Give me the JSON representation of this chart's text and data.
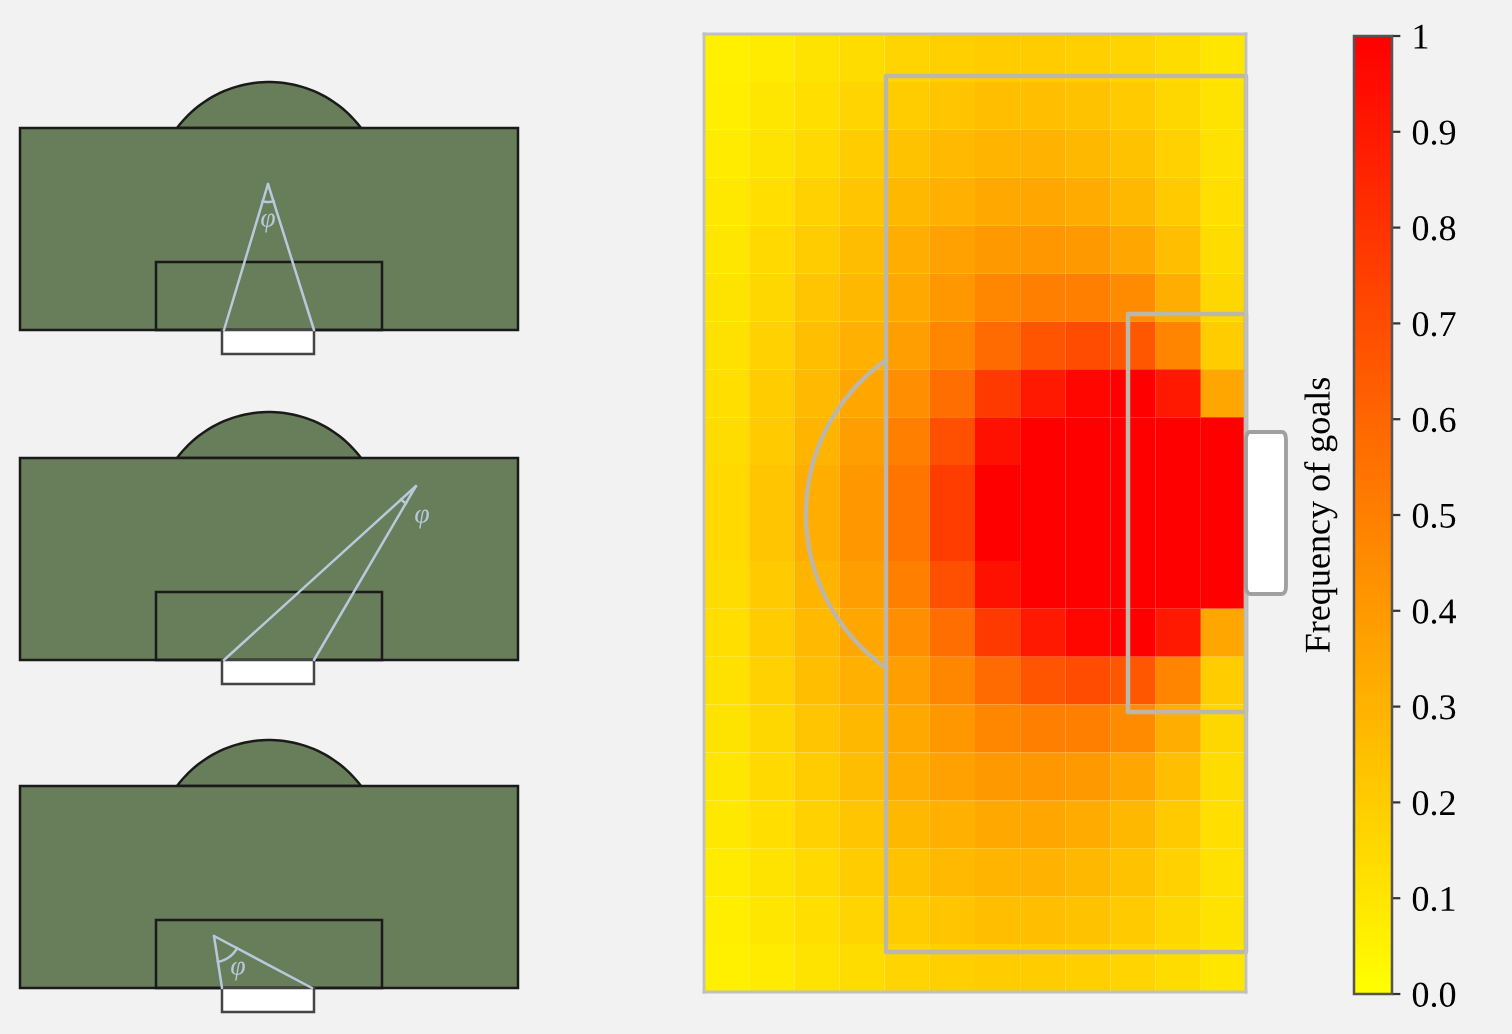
{
  "chart_data": {
    "type": "heatmap",
    "categories": [
      null,
      null,
      null,
      null,
      null,
      null,
      null,
      null,
      null,
      null,
      null,
      null
    ],
    "y_categories": [
      null,
      null,
      null,
      null,
      null,
      null,
      null,
      null,
      null,
      null,
      null,
      null,
      null,
      null,
      null,
      null,
      null,
      null,
      null,
      null
    ],
    "cells": [
      [
        0.06,
        0.08,
        0.11,
        0.14,
        0.17,
        0.19,
        0.2,
        0.2,
        0.19,
        0.17,
        0.14,
        0.1
      ],
      [
        0.07,
        0.1,
        0.13,
        0.17,
        0.2,
        0.23,
        0.25,
        0.25,
        0.24,
        0.21,
        0.16,
        0.11
      ],
      [
        0.08,
        0.11,
        0.15,
        0.2,
        0.24,
        0.27,
        0.29,
        0.3,
        0.28,
        0.24,
        0.18,
        0.12
      ],
      [
        0.09,
        0.13,
        0.18,
        0.23,
        0.28,
        0.31,
        0.34,
        0.35,
        0.33,
        0.28,
        0.21,
        0.13
      ],
      [
        0.1,
        0.15,
        0.2,
        0.26,
        0.32,
        0.37,
        0.4,
        0.41,
        0.4,
        0.35,
        0.25,
        0.14
      ],
      [
        0.11,
        0.16,
        0.23,
        0.28,
        0.34,
        0.41,
        0.47,
        0.5,
        0.5,
        0.45,
        0.32,
        0.16
      ],
      [
        0.12,
        0.18,
        0.25,
        0.31,
        0.38,
        0.47,
        0.58,
        0.67,
        0.7,
        0.66,
        0.48,
        0.2
      ],
      [
        0.13,
        0.2,
        0.27,
        0.35,
        0.44,
        0.57,
        0.77,
        0.9,
        0.97,
        1,
        0.9,
        0.35
      ],
      [
        0.14,
        0.21,
        0.29,
        0.38,
        0.5,
        0.69,
        0.93,
        1,
        1,
        1,
        1,
        1
      ],
      [
        0.15,
        0.23,
        0.32,
        0.41,
        0.54,
        0.76,
        1,
        1,
        1,
        1,
        1,
        1
      ],
      [
        0.15,
        0.23,
        0.32,
        0.41,
        0.54,
        0.76,
        1,
        1,
        1,
        1,
        1,
        1
      ],
      [
        0.14,
        0.21,
        0.29,
        0.38,
        0.5,
        0.69,
        0.93,
        1,
        1,
        1,
        1,
        1
      ],
      [
        0.13,
        0.2,
        0.27,
        0.35,
        0.44,
        0.57,
        0.77,
        0.9,
        0.97,
        1,
        0.9,
        0.35
      ],
      [
        0.12,
        0.18,
        0.25,
        0.31,
        0.38,
        0.47,
        0.58,
        0.67,
        0.7,
        0.66,
        0.48,
        0.2
      ],
      [
        0.11,
        0.16,
        0.23,
        0.28,
        0.34,
        0.41,
        0.47,
        0.5,
        0.5,
        0.45,
        0.32,
        0.16
      ],
      [
        0.1,
        0.15,
        0.2,
        0.26,
        0.32,
        0.37,
        0.4,
        0.41,
        0.4,
        0.35,
        0.25,
        0.14
      ],
      [
        0.09,
        0.13,
        0.18,
        0.23,
        0.28,
        0.31,
        0.34,
        0.35,
        0.33,
        0.28,
        0.21,
        0.13
      ],
      [
        0.08,
        0.11,
        0.15,
        0.2,
        0.24,
        0.27,
        0.29,
        0.3,
        0.28,
        0.24,
        0.18,
        0.12
      ],
      [
        0.07,
        0.1,
        0.13,
        0.17,
        0.2,
        0.23,
        0.25,
        0.25,
        0.24,
        0.21,
        0.16,
        0.11
      ],
      [
        0.06,
        0.08,
        0.11,
        0.14,
        0.17,
        0.19,
        0.2,
        0.2,
        0.19,
        0.17,
        0.14,
        0.1
      ]
    ],
    "clim": [
      0,
      1
    ],
    "cticks": [
      {
        "value": 0,
        "label": "0.0"
      },
      0.1,
      0.2,
      0.3,
      0.4,
      0.5,
      0.6,
      0.7,
      0.8,
      0.9,
      1
    ],
    "clabel": "Frequency of goals",
    "tick_labels": false,
    "annotations": [
      "φ",
      "φ",
      "φ"
    ]
  }
}
